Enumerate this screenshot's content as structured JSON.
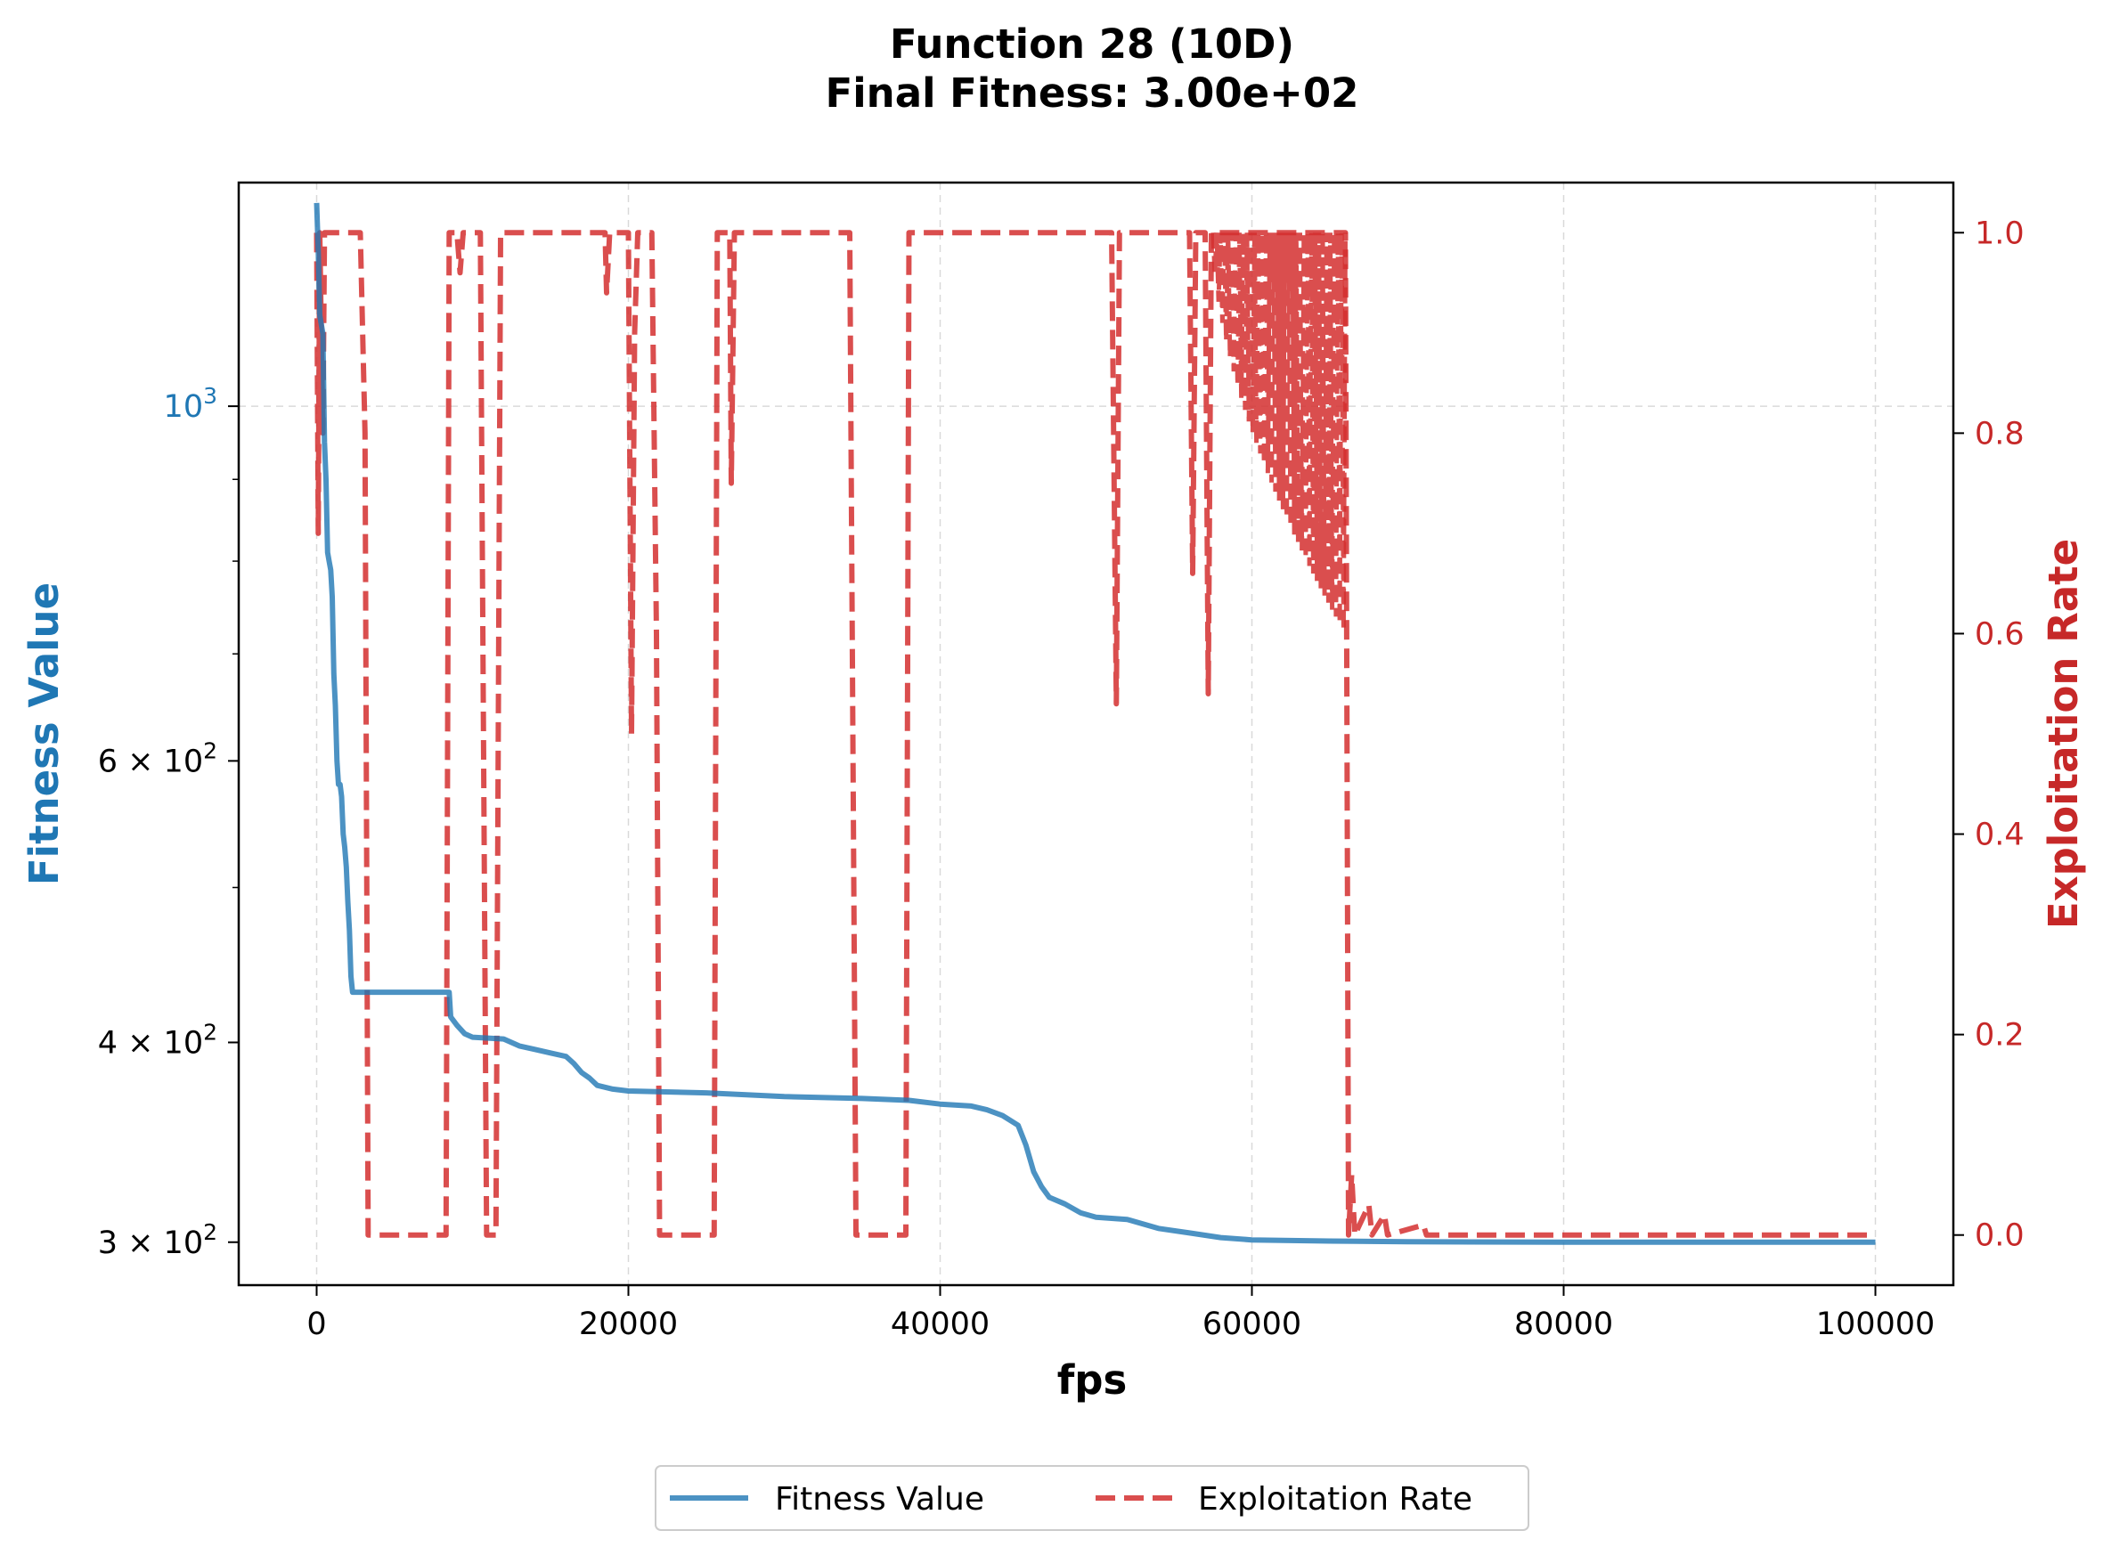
{
  "chart_data": {
    "type": "line",
    "title": "Function 28 (10D)",
    "subtitle": "Final Fitness: 3.00e+02",
    "xlabel": "fps",
    "ylabel_left": "Fitness Value",
    "ylabel_right": "Exploitation Rate",
    "xlim": [
      -5000,
      105000
    ],
    "ylim_left": [
      282,
      1380
    ],
    "y_left_scale": "log",
    "ylim_right": [
      -0.05,
      1.05
    ],
    "grid": true,
    "legend_position": "bottom-center",
    "x_ticks": [
      {
        "value": 0,
        "label": "0"
      },
      {
        "value": 20000,
        "label": "20000"
      },
      {
        "value": 40000,
        "label": "40000"
      },
      {
        "value": 60000,
        "label": "60000"
      },
      {
        "value": 80000,
        "label": "80000"
      },
      {
        "value": 100000,
        "label": "100000"
      }
    ],
    "y_left_ticks": [
      {
        "value": 1000,
        "base": "10",
        "exp": "3",
        "prefix": ""
      },
      {
        "value": 600,
        "base": "10",
        "exp": "2",
        "prefix": "6 × "
      },
      {
        "value": 400,
        "base": "10",
        "exp": "2",
        "prefix": "4 × "
      },
      {
        "value": 300,
        "base": "10",
        "exp": "2",
        "prefix": "3 × "
      }
    ],
    "y_left_minor_ticks": [
      900,
      800,
      700,
      500
    ],
    "y_right_ticks": [
      {
        "value": 0.0,
        "label": "0.0"
      },
      {
        "value": 0.2,
        "label": "0.2"
      },
      {
        "value": 0.4,
        "label": "0.4"
      },
      {
        "value": 0.6,
        "label": "0.6"
      },
      {
        "value": 0.8,
        "label": "0.8"
      },
      {
        "value": 1.0,
        "label": "1.0"
      }
    ],
    "series": [
      {
        "name": "Fitness Value",
        "axis": "left",
        "color": "#1f77b4",
        "style": "solid",
        "points": [
          [
            0,
            1340
          ],
          [
            100,
            1250
          ],
          [
            200,
            1140
          ],
          [
            400,
            1110
          ],
          [
            500,
            950
          ],
          [
            600,
            900
          ],
          [
            700,
            810
          ],
          [
            800,
            800
          ],
          [
            900,
            790
          ],
          [
            1000,
            760
          ],
          [
            1100,
            680
          ],
          [
            1200,
            650
          ],
          [
            1300,
            600
          ],
          [
            1400,
            580
          ],
          [
            1500,
            580
          ],
          [
            1600,
            570
          ],
          [
            1700,
            540
          ],
          [
            1800,
            530
          ],
          [
            1900,
            515
          ],
          [
            2000,
            490
          ],
          [
            2100,
            470
          ],
          [
            2200,
            440
          ],
          [
            2300,
            430
          ],
          [
            3000,
            430
          ],
          [
            5000,
            430
          ],
          [
            8000,
            430
          ],
          [
            8500,
            430
          ],
          [
            8600,
            415
          ],
          [
            9000,
            410
          ],
          [
            9500,
            405
          ],
          [
            10000,
            403
          ],
          [
            12000,
            402
          ],
          [
            13000,
            398
          ],
          [
            14000,
            396
          ],
          [
            15000,
            394
          ],
          [
            16000,
            392
          ],
          [
            16500,
            388
          ],
          [
            17000,
            383
          ],
          [
            17500,
            380
          ],
          [
            18000,
            376
          ],
          [
            19000,
            374
          ],
          [
            20000,
            373
          ],
          [
            25000,
            372
          ],
          [
            30000,
            370
          ],
          [
            35000,
            369
          ],
          [
            38000,
            368
          ],
          [
            40000,
            366
          ],
          [
            42000,
            365
          ],
          [
            43000,
            363
          ],
          [
            44000,
            360
          ],
          [
            45000,
            355
          ],
          [
            45500,
            345
          ],
          [
            46000,
            332
          ],
          [
            46500,
            325
          ],
          [
            47000,
            320
          ],
          [
            48000,
            317
          ],
          [
            49000,
            313
          ],
          [
            50000,
            311
          ],
          [
            52000,
            310
          ],
          [
            54000,
            306
          ],
          [
            56000,
            304
          ],
          [
            58000,
            302
          ],
          [
            60000,
            301
          ],
          [
            65000,
            300.5
          ],
          [
            70000,
            300.2
          ],
          [
            80000,
            300
          ],
          [
            100000,
            300
          ]
        ]
      },
      {
        "name": "Exploitation Rate",
        "axis": "right",
        "color": "#d32f2f",
        "style": "dashed",
        "points": [
          [
            0,
            1.0
          ],
          [
            100,
            0.7
          ],
          [
            200,
            1.0
          ],
          [
            400,
            0.8
          ],
          [
            500,
            1.0
          ],
          [
            2800,
            1.0
          ],
          [
            3100,
            0.8
          ],
          [
            3300,
            0.0
          ],
          [
            8300,
            0.0
          ],
          [
            8500,
            1.0
          ],
          [
            9000,
            1.0
          ],
          [
            9200,
            0.96
          ],
          [
            9400,
            1.0
          ],
          [
            10500,
            1.0
          ],
          [
            10900,
            0.0
          ],
          [
            11500,
            0.0
          ],
          [
            11800,
            1.0
          ],
          [
            18500,
            1.0
          ],
          [
            18600,
            0.94
          ],
          [
            18800,
            1.0
          ],
          [
            20000,
            1.0
          ],
          [
            20200,
            0.5
          ],
          [
            20400,
            0.9
          ],
          [
            20600,
            1.0
          ],
          [
            21500,
            1.0
          ],
          [
            21800,
            0.6
          ],
          [
            22000,
            0.0
          ],
          [
            25500,
            0.0
          ],
          [
            25700,
            1.0
          ],
          [
            26500,
            1.0
          ],
          [
            26600,
            0.75
          ],
          [
            26800,
            1.0
          ],
          [
            34200,
            1.0
          ],
          [
            34600,
            0.0
          ],
          [
            37800,
            0.0
          ],
          [
            38000,
            1.0
          ],
          [
            51000,
            1.0
          ],
          [
            51300,
            0.53
          ],
          [
            51500,
            1.0
          ],
          [
            54000,
            1.0
          ],
          [
            56000,
            1.0
          ],
          [
            56200,
            0.66
          ],
          [
            56400,
            1.0
          ],
          [
            57000,
            1.0
          ],
          [
            57200,
            0.54
          ],
          [
            57400,
            1.0
          ],
          [
            66000,
            1.0
          ],
          [
            66200,
            0.0
          ],
          [
            66400,
            0.06
          ],
          [
            66600,
            0.0
          ],
          [
            67500,
            0.03
          ],
          [
            67700,
            0.0
          ],
          [
            68500,
            0.02
          ],
          [
            68700,
            0.0
          ],
          [
            71000,
            0.01
          ],
          [
            71200,
            0.0
          ],
          [
            72500,
            0.0
          ],
          [
            100000,
            0.0
          ]
        ],
        "oscillation_band": {
          "x_start": 57500,
          "x_end": 66000,
          "min_start": 0.99,
          "min_end": 0.6,
          "max": 1.0
        }
      }
    ]
  }
}
